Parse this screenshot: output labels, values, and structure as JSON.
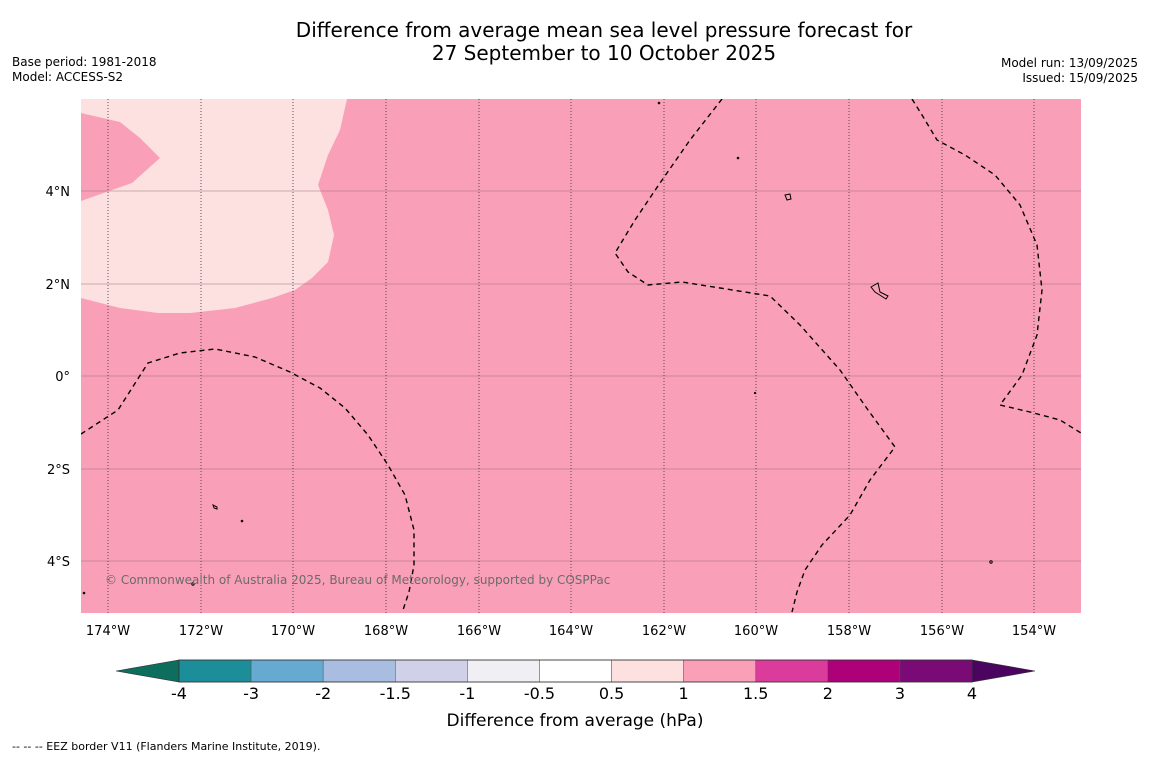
{
  "title": {
    "line1": "Difference from average mean sea level pressure forecast for",
    "line2": "27 September to 10 October 2025"
  },
  "meta": {
    "base_period": "Base period: 1981-2018",
    "model": "Model: ACCESS-S2",
    "model_run": "Model run: 13/09/2025",
    "issued": "Issued: 15/09/2025"
  },
  "map": {
    "lat_labels": [
      "4°N",
      "2°N",
      "0°",
      "2°S",
      "4°S"
    ],
    "lon_labels": [
      "174°W",
      "172°W",
      "170°W",
      "168°W",
      "166°W",
      "164°W",
      "162°W",
      "160°W",
      "158°W",
      "156°W",
      "154°W"
    ],
    "copyright": "© Commonwealth of Australia 2025, Bureau of Meteorology, supported by COSPPac",
    "fill_colors": {
      "range_1_to_1_5": "#f9a0b8",
      "range_0_5_to_1": "#fde0e0"
    }
  },
  "colorbar": {
    "title": "Difference from average (hPa)",
    "tick_labels": [
      "-4",
      "-3",
      "-2",
      "-1.5",
      "-1",
      "-0.5",
      "0.5",
      "1",
      "1.5",
      "2",
      "3",
      "4"
    ],
    "colors": [
      "#0d6e5e",
      "#1b8e99",
      "#66a9d1",
      "#a8bde0",
      "#d0d0e8",
      "#efeff4",
      "#ffffff",
      "#fde0e0",
      "#f9a0b8",
      "#db3b9a",
      "#ad0079",
      "#7a0a76",
      "#4b0560"
    ]
  },
  "footnote": "--  --  -- EEZ border V11 (Flanders Marine Institute, 2019)."
}
